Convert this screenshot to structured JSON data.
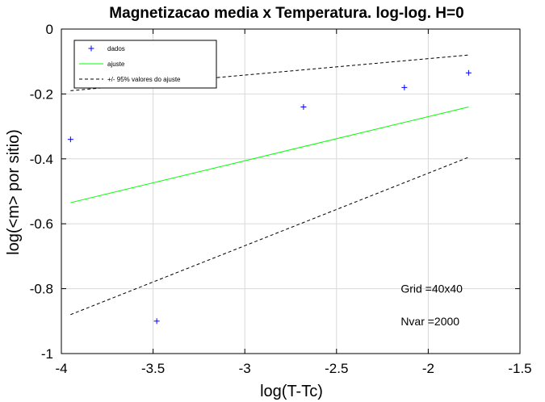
{
  "chart_data": {
    "type": "scatter",
    "title": "Magnetizacao media x Temperatura. log-log. H=0",
    "xlabel": "log(T-Tc)",
    "ylabel": "log(<m> por sitio)",
    "xlim": [
      -4,
      -1.5
    ],
    "ylim": [
      -1,
      0
    ],
    "xticks": [
      -4,
      -3.5,
      -3,
      -2.5,
      -2,
      -1.5
    ],
    "xtick_labels": [
      "-4",
      "-3.5",
      "-3",
      "-2.5",
      "-2",
      "-1.5"
    ],
    "yticks": [
      0,
      -0.2,
      -0.4,
      -0.6,
      -0.8,
      -1
    ],
    "ytick_labels": [
      "0",
      "-0.2",
      "-0.4",
      "-0.6",
      "-0.8",
      "-1"
    ],
    "grid": true,
    "legend_position": "top-left",
    "series": [
      {
        "name": "dados",
        "style": "markers",
        "marker": "+",
        "color": "#0000ff",
        "x": [
          -3.95,
          -3.48,
          -2.68,
          -2.13,
          -1.78
        ],
        "y": [
          -0.34,
          -0.9,
          -0.24,
          -0.18,
          -0.135
        ]
      },
      {
        "name": "ajuste",
        "style": "line",
        "color": "#00ff00",
        "x": [
          -3.95,
          -1.78
        ],
        "y": [
          -0.535,
          -0.24
        ]
      },
      {
        "name": "+/- 95% valores do ajuste",
        "style": "dashed",
        "color": "#000000",
        "x": [
          -3.95,
          -1.78
        ],
        "y": [
          -0.19,
          -0.08
        ]
      },
      {
        "name": "+/- 95% valores do ajuste",
        "style": "dashed",
        "color": "#000000",
        "x": [
          -3.95,
          -1.78
        ],
        "y": [
          -0.88,
          -0.395
        ],
        "in_legend": false
      }
    ],
    "annotations": [
      {
        "text": "Grid =40x40",
        "x": -2.15,
        "y": -0.8
      },
      {
        "text": "Nvar =2000",
        "x": -2.15,
        "y": -0.9
      }
    ]
  }
}
